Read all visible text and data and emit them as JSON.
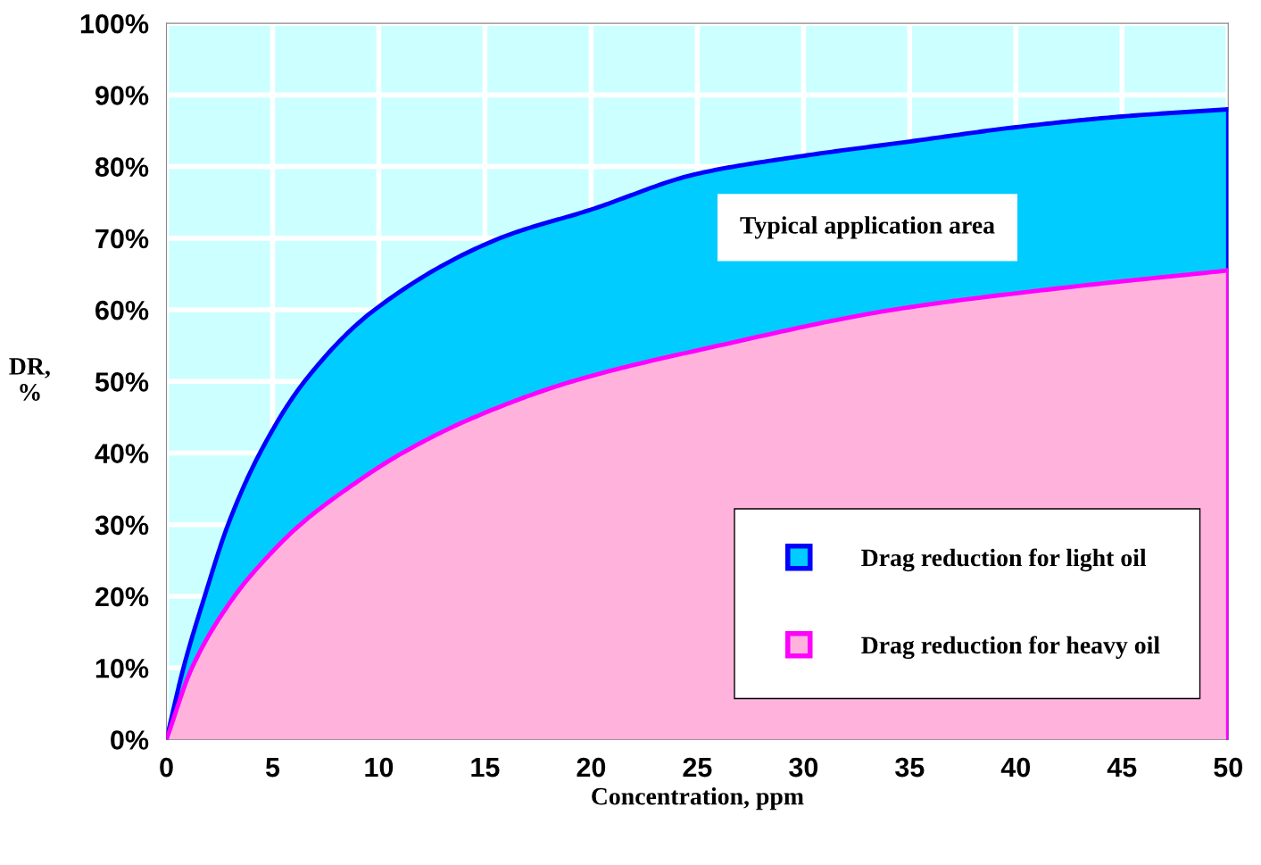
{
  "chart_data": {
    "type": "area",
    "xlabel": "Concentration, ppm",
    "ylabel": "DR,\n%",
    "xlim": [
      0,
      50
    ],
    "xticks": [
      0,
      5,
      10,
      15,
      20,
      25,
      30,
      35,
      40,
      45,
      50
    ],
    "ylim": [
      0,
      100
    ],
    "yticks": [
      {
        "value": 0,
        "label": "0%"
      },
      {
        "value": 10,
        "label": "10%"
      },
      {
        "value": 20,
        "label": "20%"
      },
      {
        "value": 30,
        "label": "30%"
      },
      {
        "value": 40,
        "label": "40%"
      },
      {
        "value": 50,
        "label": "50%"
      },
      {
        "value": 60,
        "label": "60%"
      },
      {
        "value": 70,
        "label": "70%"
      },
      {
        "value": 80,
        "label": "80%"
      },
      {
        "value": 90,
        "label": "90%"
      },
      {
        "value": 100,
        "label": "100%"
      }
    ],
    "grid": true,
    "legend": "bottom right",
    "annotations": [
      "Typical application area"
    ],
    "bands": [
      {
        "axis": "x",
        "from": 0,
        "to": 50,
        "color": "#ccffff"
      }
    ],
    "series": [
      {
        "name": "Drag reduction for light oil",
        "color": "#00ccff",
        "x": [
          0,
          0.8,
          1.8,
          2.9,
          4.4,
          6.5,
          9.8,
          15.7,
          20,
          25,
          30,
          35,
          40,
          45,
          50
        ],
        "values": [
          0,
          10,
          20,
          30,
          40,
          50,
          60,
          70,
          74,
          79,
          81.5,
          83.5,
          85.5,
          87,
          88
        ]
      },
      {
        "name": "Drag reduction for heavy oil",
        "color": "#ffb3dc",
        "x": [
          0,
          1.2,
          3.2,
          4.6,
          6.3,
          8.5,
          11.1,
          14.5,
          19.1,
          26,
          34.2,
          42,
          50
        ],
        "values": [
          0,
          10,
          20,
          25,
          30,
          35,
          40,
          45,
          50,
          55,
          60,
          63,
          65.5
        ]
      }
    ]
  }
}
